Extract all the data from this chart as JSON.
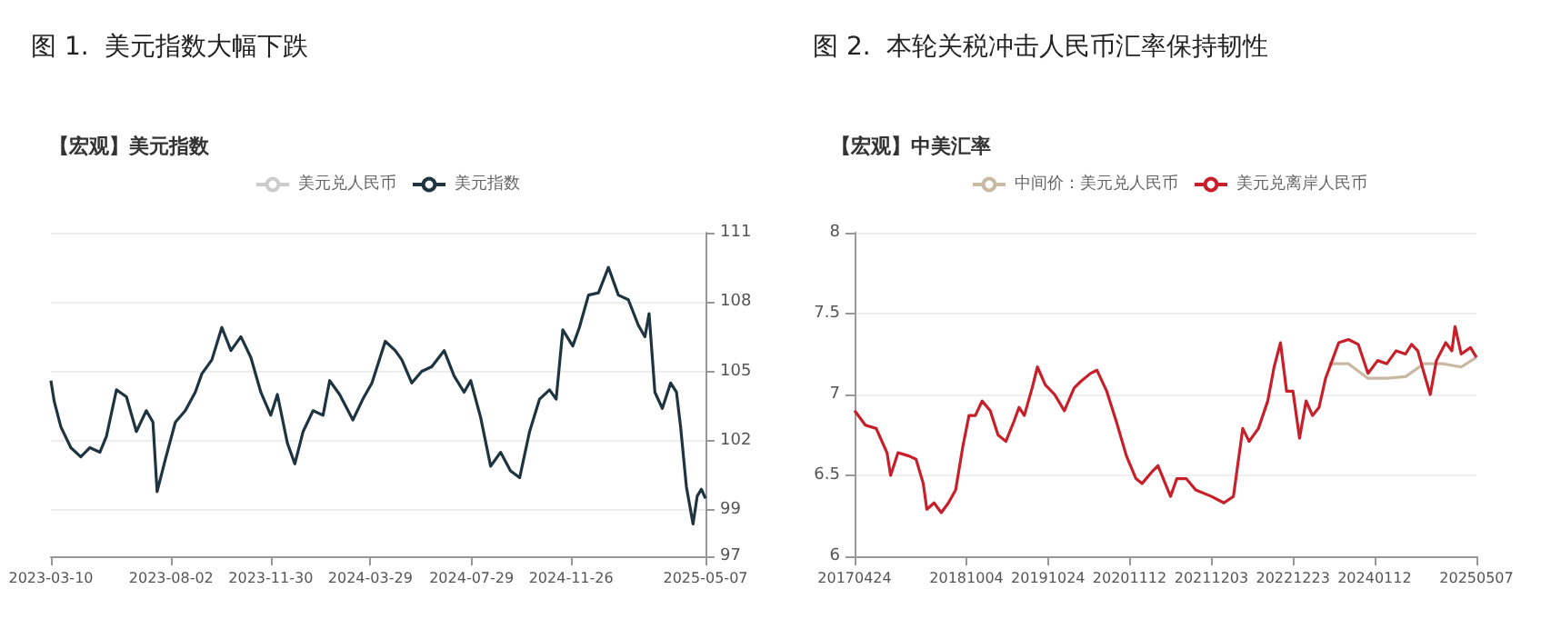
{
  "chart_data": [
    {
      "type": "line",
      "title": "图 1.  美元指数大幅下跌",
      "subtitle": "【宏观】美元指数",
      "legend": "top",
      "grid": "y",
      "xlim": [
        "2023-03-10",
        "2025-05-07"
      ],
      "xticks": [
        {
          "value": "2023-03-10",
          "label": "2023-03-10"
        },
        {
          "value": "2023-08-02",
          "label": "2023-08-02"
        },
        {
          "value": "2023-11-30",
          "label": "2023-11-30"
        },
        {
          "value": "2024-03-29",
          "label": "2024-03-29"
        },
        {
          "value": "2024-07-29",
          "label": "2024-07-29"
        },
        {
          "value": "2024-11-26",
          "label": "2024-11-26"
        },
        {
          "value": "2025-05-07",
          "label": "2025-05-07"
        }
      ],
      "y2lim": [
        97,
        111
      ],
      "y2ticks": [
        97,
        99,
        102,
        105,
        108,
        111
      ],
      "series": [
        {
          "name": "美元兑人民币",
          "color": "#cccccc",
          "axis": "y2"
        },
        {
          "name": "美元指数",
          "color": "#1e3440",
          "axis": "y2",
          "x": [
            "2023-03-10",
            "2023-03-14",
            "2023-03-22",
            "2023-04-03",
            "2023-04-15",
            "2023-04-26",
            "2023-05-08",
            "2023-05-16",
            "2023-05-28",
            "2023-06-09",
            "2023-06-21",
            "2023-07-03",
            "2023-07-11",
            "2023-07-16",
            "2023-07-26",
            "2023-08-07",
            "2023-08-19",
            "2023-08-31",
            "2023-09-08",
            "2023-09-20",
            "2023-10-02",
            "2023-10-13",
            "2023-10-25",
            "2023-11-06",
            "2023-11-18",
            "2023-11-30",
            "2023-12-08",
            "2023-12-20",
            "2023-12-29",
            "2024-01-08",
            "2024-01-20",
            "2024-02-01",
            "2024-02-09",
            "2024-02-21",
            "2024-03-08",
            "2024-03-20",
            "2024-03-31",
            "2024-04-16",
            "2024-04-28",
            "2024-05-06",
            "2024-05-18",
            "2024-05-30",
            "2024-06-11",
            "2024-06-26",
            "2024-07-08",
            "2024-07-20",
            "2024-07-28",
            "2024-08-09",
            "2024-08-21",
            "2024-09-02",
            "2024-09-14",
            "2024-09-25",
            "2024-10-07",
            "2024-10-19",
            "2024-10-31",
            "2024-11-08",
            "2024-11-16",
            "2024-11-28",
            "2024-12-06",
            "2024-12-17",
            "2024-12-29",
            "2025-01-10",
            "2025-01-22",
            "2025-02-03",
            "2025-02-15",
            "2025-02-23",
            "2025-02-28",
            "2025-03-07",
            "2025-03-16",
            "2025-03-26",
            "2025-04-02",
            "2025-04-07",
            "2025-04-14",
            "2025-04-22",
            "2025-04-27",
            "2025-05-02",
            "2025-05-07"
          ],
          "values": [
            104.6,
            103.7,
            102.6,
            101.7,
            101.3,
            101.7,
            101.5,
            102.2,
            104.2,
            103.9,
            102.4,
            103.3,
            102.8,
            99.8,
            101.2,
            102.8,
            103.3,
            104.1,
            104.9,
            105.5,
            106.9,
            105.9,
            106.5,
            105.6,
            104.1,
            103.1,
            104.0,
            101.9,
            101.0,
            102.4,
            103.3,
            103.1,
            104.6,
            104.0,
            102.9,
            103.8,
            104.5,
            106.3,
            105.9,
            105.5,
            104.5,
            105.0,
            105.2,
            105.9,
            104.8,
            104.1,
            104.6,
            103.0,
            100.9,
            101.5,
            100.7,
            100.4,
            102.4,
            103.8,
            104.2,
            103.8,
            106.8,
            106.1,
            106.9,
            108.3,
            108.4,
            109.5,
            108.3,
            108.1,
            107.0,
            106.5,
            107.5,
            104.1,
            103.4,
            104.5,
            104.1,
            102.6,
            100.0,
            98.4,
            99.6,
            99.9,
            99.5
          ]
        }
      ]
    },
    {
      "type": "line",
      "title": "图 2.  本轮关税冲击人民币汇率保持韧性",
      "subtitle": "【宏观】中美汇率",
      "legend": "top",
      "grid": "y",
      "xlim": [
        "2017-04-24",
        "2025-05-07"
      ],
      "xticks": [
        {
          "value": "2017-04-24",
          "label": "20170424"
        },
        {
          "value": "2018-10-04",
          "label": "20181004"
        },
        {
          "value": "2019-10-24",
          "label": "20191024"
        },
        {
          "value": "2020-11-12",
          "label": "20201112"
        },
        {
          "value": "2021-12-03",
          "label": "20211203"
        },
        {
          "value": "2022-12-23",
          "label": "20221223"
        },
        {
          "value": "2024-01-12",
          "label": "20240112"
        },
        {
          "value": "2025-05-07",
          "label": "20250507"
        }
      ],
      "ylim": [
        6,
        8
      ],
      "yticks": [
        6,
        6.5,
        7,
        7.5,
        8
      ],
      "series": [
        {
          "name": "中间价：美元兑人民币",
          "color": "#c9b9a3",
          "x": [
            "2023-06-10",
            "2023-09-11",
            "2023-12-12",
            "2024-03-10",
            "2024-06-06",
            "2024-09-02",
            "2024-11-28",
            "2025-02-24",
            "2025-05-07"
          ],
          "values": [
            7.19,
            7.19,
            7.1,
            7.1,
            7.11,
            7.19,
            7.19,
            7.17,
            7.23
          ]
        },
        {
          "name": "美元兑离岸人民币",
          "color": "#c8202a",
          "x": [
            "2017-04-24",
            "2017-06-14",
            "2017-08-04",
            "2017-09-24",
            "2017-10-11",
            "2017-11-15",
            "2018-01-05",
            "2018-02-08",
            "2018-03-14",
            "2018-03-31",
            "2018-05-04",
            "2018-06-07",
            "2018-07-11",
            "2018-08-14",
            "2018-09-17",
            "2018-10-16",
            "2018-11-15",
            "2018-12-17",
            "2019-01-24",
            "2019-03-02",
            "2019-04-08",
            "2019-05-15",
            "2019-06-09",
            "2019-07-04",
            "2019-08-10",
            "2019-09-04",
            "2019-10-11",
            "2019-11-24",
            "2020-01-09",
            "2020-02-24",
            "2020-03-26",
            "2020-05-11",
            "2020-06-11",
            "2020-07-27",
            "2020-09-11",
            "2020-10-28",
            "2020-12-12",
            "2021-01-10",
            "2021-02-24",
            "2021-03-26",
            "2021-05-24",
            "2021-06-23",
            "2021-08-06",
            "2021-09-20",
            "2021-12-03",
            "2022-01-31",
            "2022-03-17",
            "2022-04-30",
            "2022-05-30",
            "2022-07-13",
            "2022-08-26",
            "2022-09-25",
            "2022-10-25",
            "2022-11-23",
            "2022-12-23",
            "2023-01-23",
            "2023-02-23",
            "2023-03-25",
            "2023-04-25",
            "2023-05-26",
            "2023-06-26",
            "2023-07-27",
            "2023-09-11",
            "2023-10-27",
            "2023-12-12",
            "2024-01-27",
            "2024-03-10",
            "2024-04-23",
            "2024-06-06",
            "2024-07-05",
            "2024-08-03",
            "2024-09-02",
            "2024-10-01",
            "2024-10-30",
            "2024-12-13",
            "2025-01-11",
            "2025-01-26",
            "2025-02-24",
            "2025-04-09",
            "2025-05-07"
          ],
          "values": [
            6.9,
            6.81,
            6.79,
            6.64,
            6.5,
            6.64,
            6.62,
            6.6,
            6.45,
            6.29,
            6.33,
            6.27,
            6.33,
            6.41,
            6.68,
            6.87,
            6.87,
            6.96,
            6.9,
            6.75,
            6.71,
            6.83,
            6.92,
            6.87,
            7.04,
            7.17,
            7.06,
            7.0,
            6.9,
            7.04,
            7.08,
            7.13,
            7.15,
            7.02,
            6.83,
            6.62,
            6.48,
            6.45,
            6.52,
            6.56,
            6.37,
            6.48,
            6.48,
            6.41,
            6.37,
            6.33,
            6.37,
            6.79,
            6.71,
            6.79,
            6.96,
            7.17,
            7.32,
            7.02,
            7.02,
            6.73,
            6.96,
            6.87,
            6.92,
            7.1,
            7.21,
            7.32,
            7.34,
            7.31,
            7.13,
            7.21,
            7.19,
            7.27,
            7.25,
            7.31,
            7.27,
            7.13,
            7.0,
            7.21,
            7.32,
            7.27,
            7.42,
            7.25,
            7.29,
            7.23
          ]
        }
      ]
    }
  ]
}
